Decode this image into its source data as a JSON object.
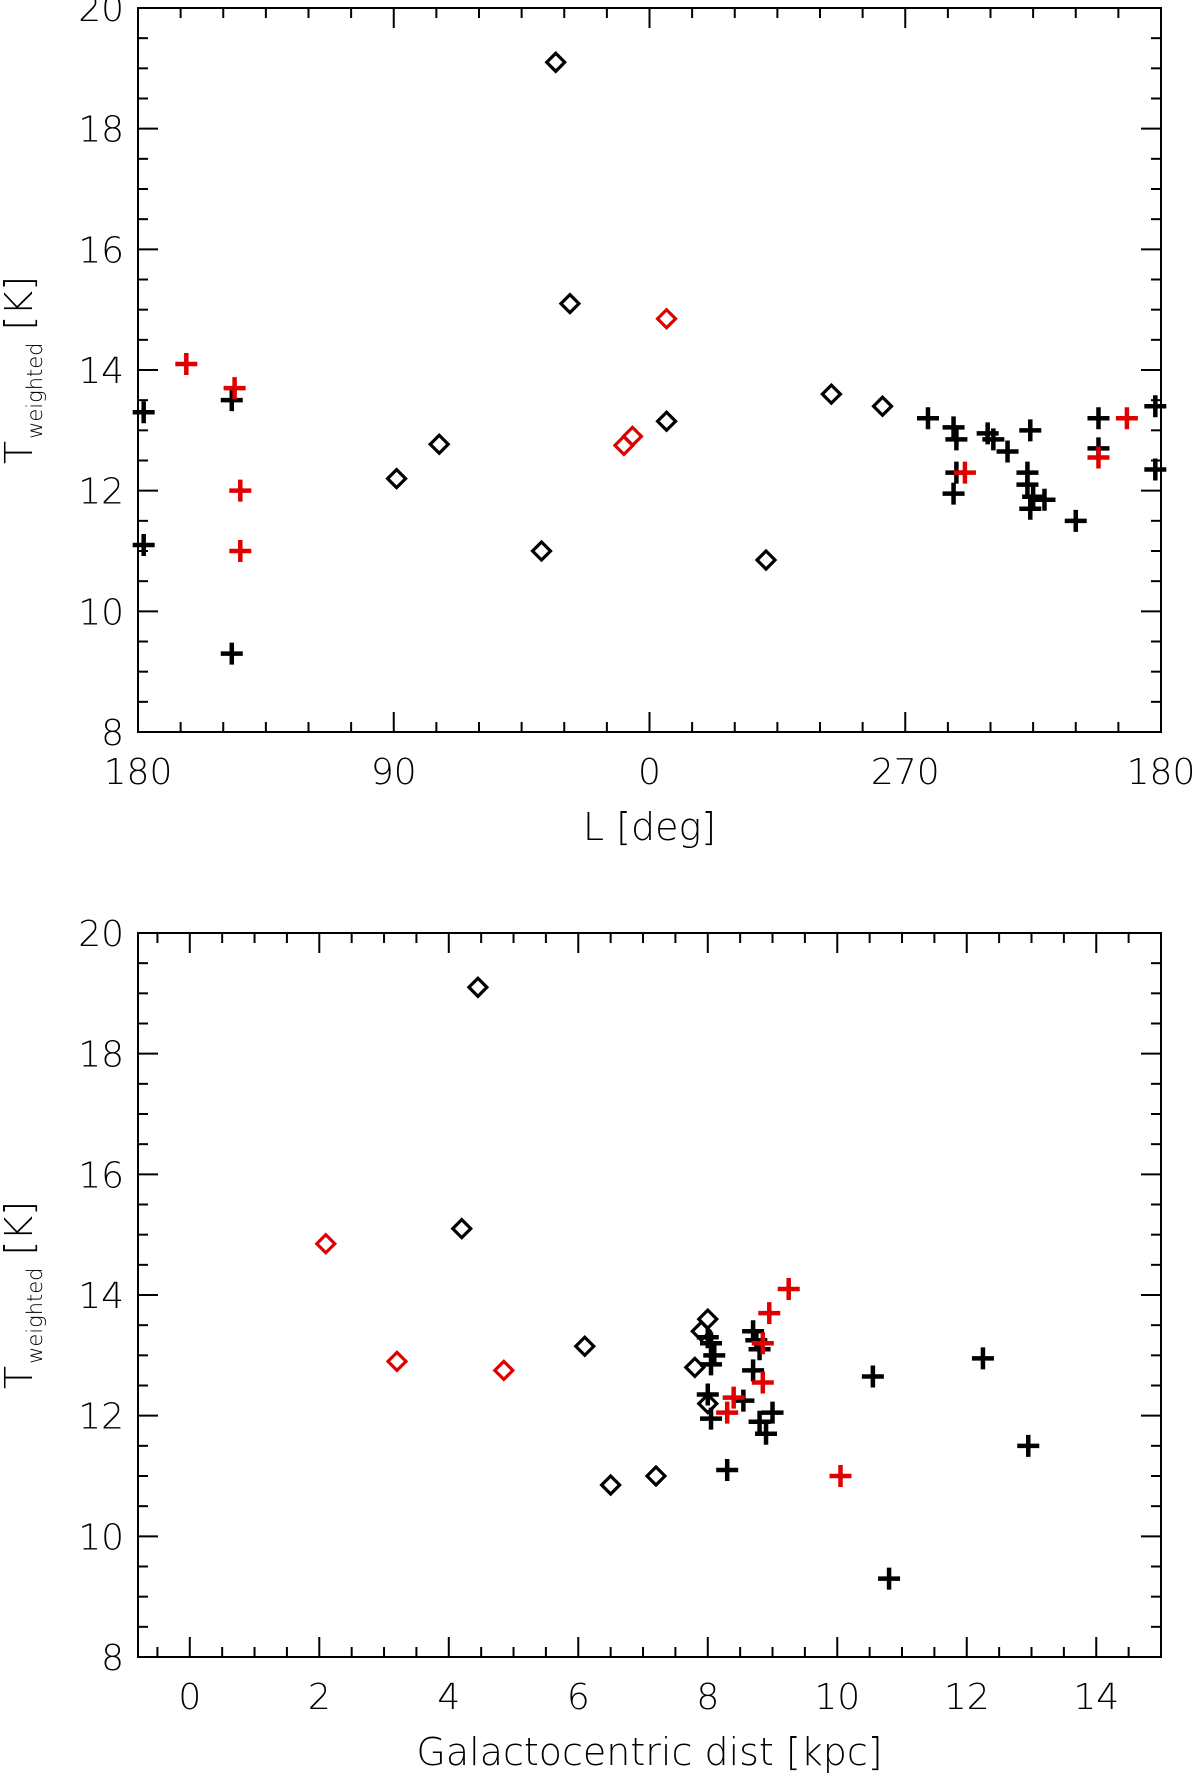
{
  "chart_data": [
    {
      "type": "scatter",
      "xlabel": "L [deg]",
      "ylabel": "T_weighted [K]",
      "ylabel_main": "T",
      "ylabel_sub": "weighted",
      "ylabel_unit": "[K]",
      "x_axis_note": "Galactic longitude plotted from 180 through 90, 0, 270 back to 180; x values below are plot coordinates (0 = left edge at L=180)",
      "xlim": [
        0,
        360
      ],
      "ylim": [
        8,
        20
      ],
      "x_ticks": [
        {
          "pos": 0,
          "label": "180"
        },
        {
          "pos": 90,
          "label": "90"
        },
        {
          "pos": 180,
          "label": "0"
        },
        {
          "pos": 270,
          "label": "270"
        },
        {
          "pos": 360,
          "label": "180"
        }
      ],
      "y_ticks": [
        {
          "value": 8,
          "label": "8"
        },
        {
          "value": 10,
          "label": "10"
        },
        {
          "value": 12,
          "label": "12"
        },
        {
          "value": 14,
          "label": "14"
        },
        {
          "value": 16,
          "label": "16"
        },
        {
          "value": 18,
          "label": "18"
        },
        {
          "value": 20,
          "label": "20"
        }
      ],
      "series": [
        {
          "name": "black diamonds",
          "marker": "diamond",
          "color": "#000000",
          "points": [
            [
              147,
              19.1
            ],
            [
              152,
              15.1
            ],
            [
              186,
              13.15
            ],
            [
              91,
              12.2
            ],
            [
              106,
              12.77
            ],
            [
              142,
              11.0
            ],
            [
              221,
              10.85
            ],
            [
              244,
              13.6
            ],
            [
              262,
              13.4
            ]
          ]
        },
        {
          "name": "red diamonds",
          "marker": "diamond",
          "color": "#e00000",
          "points": [
            [
              186,
              14.85
            ],
            [
              171,
              12.75
            ],
            [
              174,
              12.9
            ]
          ]
        },
        {
          "name": "black crosses",
          "marker": "plus",
          "color": "#000000",
          "points": [
            [
              2,
              13.3
            ],
            [
              2,
              11.1
            ],
            [
              33,
              13.5
            ],
            [
              33,
              9.3
            ],
            [
              278,
              13.2
            ],
            [
              287,
              13.05
            ],
            [
              288,
              12.85
            ],
            [
              288,
              12.3
            ],
            [
              287,
              11.95
            ],
            [
              299,
              12.95
            ],
            [
              301,
              12.85
            ],
            [
              306,
              12.65
            ],
            [
              314,
              13.0
            ],
            [
              313,
              12.3
            ],
            [
              313,
              12.1
            ],
            [
              315,
              11.9
            ],
            [
              319,
              11.85
            ],
            [
              314,
              11.7
            ],
            [
              330,
              11.5
            ],
            [
              338,
              13.2
            ],
            [
              338,
              12.7
            ],
            [
              358,
              13.4
            ],
            [
              358,
              12.35
            ]
          ]
        },
        {
          "name": "red crosses",
          "marker": "plus",
          "color": "#e00000",
          "points": [
            [
              17,
              14.1
            ],
            [
              34,
              13.7
            ],
            [
              36,
              12.0
            ],
            [
              36,
              11.0
            ],
            [
              291,
              12.3
            ],
            [
              338,
              12.55
            ],
            [
              348,
              13.2
            ]
          ]
        }
      ]
    },
    {
      "type": "scatter",
      "xlabel": "Galactocentric dist [kpc]",
      "ylabel": "T_weighted [K]",
      "ylabel_main": "T",
      "ylabel_sub": "weighted",
      "ylabel_unit": "[K]",
      "xlim": [
        -0.8,
        15
      ],
      "ylim": [
        8,
        20
      ],
      "x_ticks": [
        {
          "pos": 0,
          "label": "0"
        },
        {
          "pos": 2,
          "label": "2"
        },
        {
          "pos": 4,
          "label": "4"
        },
        {
          "pos": 6,
          "label": "6"
        },
        {
          "pos": 8,
          "label": "8"
        },
        {
          "pos": 10,
          "label": "10"
        },
        {
          "pos": 12,
          "label": "12"
        },
        {
          "pos": 14,
          "label": "14"
        }
      ],
      "y_ticks": [
        {
          "value": 8,
          "label": "8"
        },
        {
          "value": 10,
          "label": "10"
        },
        {
          "value": 12,
          "label": "12"
        },
        {
          "value": 14,
          "label": "14"
        },
        {
          "value": 16,
          "label": "16"
        },
        {
          "value": 18,
          "label": "18"
        },
        {
          "value": 20,
          "label": "20"
        }
      ],
      "series": [
        {
          "name": "black diamonds",
          "marker": "diamond",
          "color": "#000000",
          "points": [
            [
              4.45,
              19.1
            ],
            [
              4.2,
              15.1
            ],
            [
              6.1,
              13.15
            ],
            [
              6.5,
              10.85
            ],
            [
              7.2,
              11.0
            ],
            [
              7.9,
              13.4
            ],
            [
              8.0,
              13.6
            ],
            [
              7.8,
              12.8
            ],
            [
              8.0,
              12.2
            ]
          ]
        },
        {
          "name": "red diamonds",
          "marker": "diamond",
          "color": "#e00000",
          "points": [
            [
              2.1,
              14.85
            ],
            [
              3.2,
              12.9
            ],
            [
              4.85,
              12.75
            ]
          ]
        },
        {
          "name": "black crosses",
          "marker": "plus",
          "color": "#000000",
          "points": [
            [
              8.0,
              13.3
            ],
            [
              8.05,
              13.2
            ],
            [
              8.1,
              13.0
            ],
            [
              8.05,
              12.85
            ],
            [
              8.0,
              12.35
            ],
            [
              8.05,
              11.95
            ],
            [
              8.3,
              11.1
            ],
            [
              8.7,
              13.4
            ],
            [
              8.75,
              13.25
            ],
            [
              8.8,
              13.1
            ],
            [
              8.7,
              12.75
            ],
            [
              8.55,
              12.25
            ],
            [
              8.8,
              11.9
            ],
            [
              8.9,
              11.7
            ],
            [
              9.0,
              12.05
            ],
            [
              10.55,
              12.65
            ],
            [
              10.8,
              9.3
            ],
            [
              12.25,
              12.95
            ],
            [
              12.95,
              11.5
            ]
          ]
        },
        {
          "name": "red crosses",
          "marker": "plus",
          "color": "#e00000",
          "points": [
            [
              9.25,
              14.1
            ],
            [
              8.95,
              13.7
            ],
            [
              8.85,
              13.2
            ],
            [
              8.85,
              12.55
            ],
            [
              8.4,
              12.3
            ],
            [
              8.3,
              12.05
            ],
            [
              10.05,
              11.0
            ]
          ]
        }
      ]
    }
  ]
}
